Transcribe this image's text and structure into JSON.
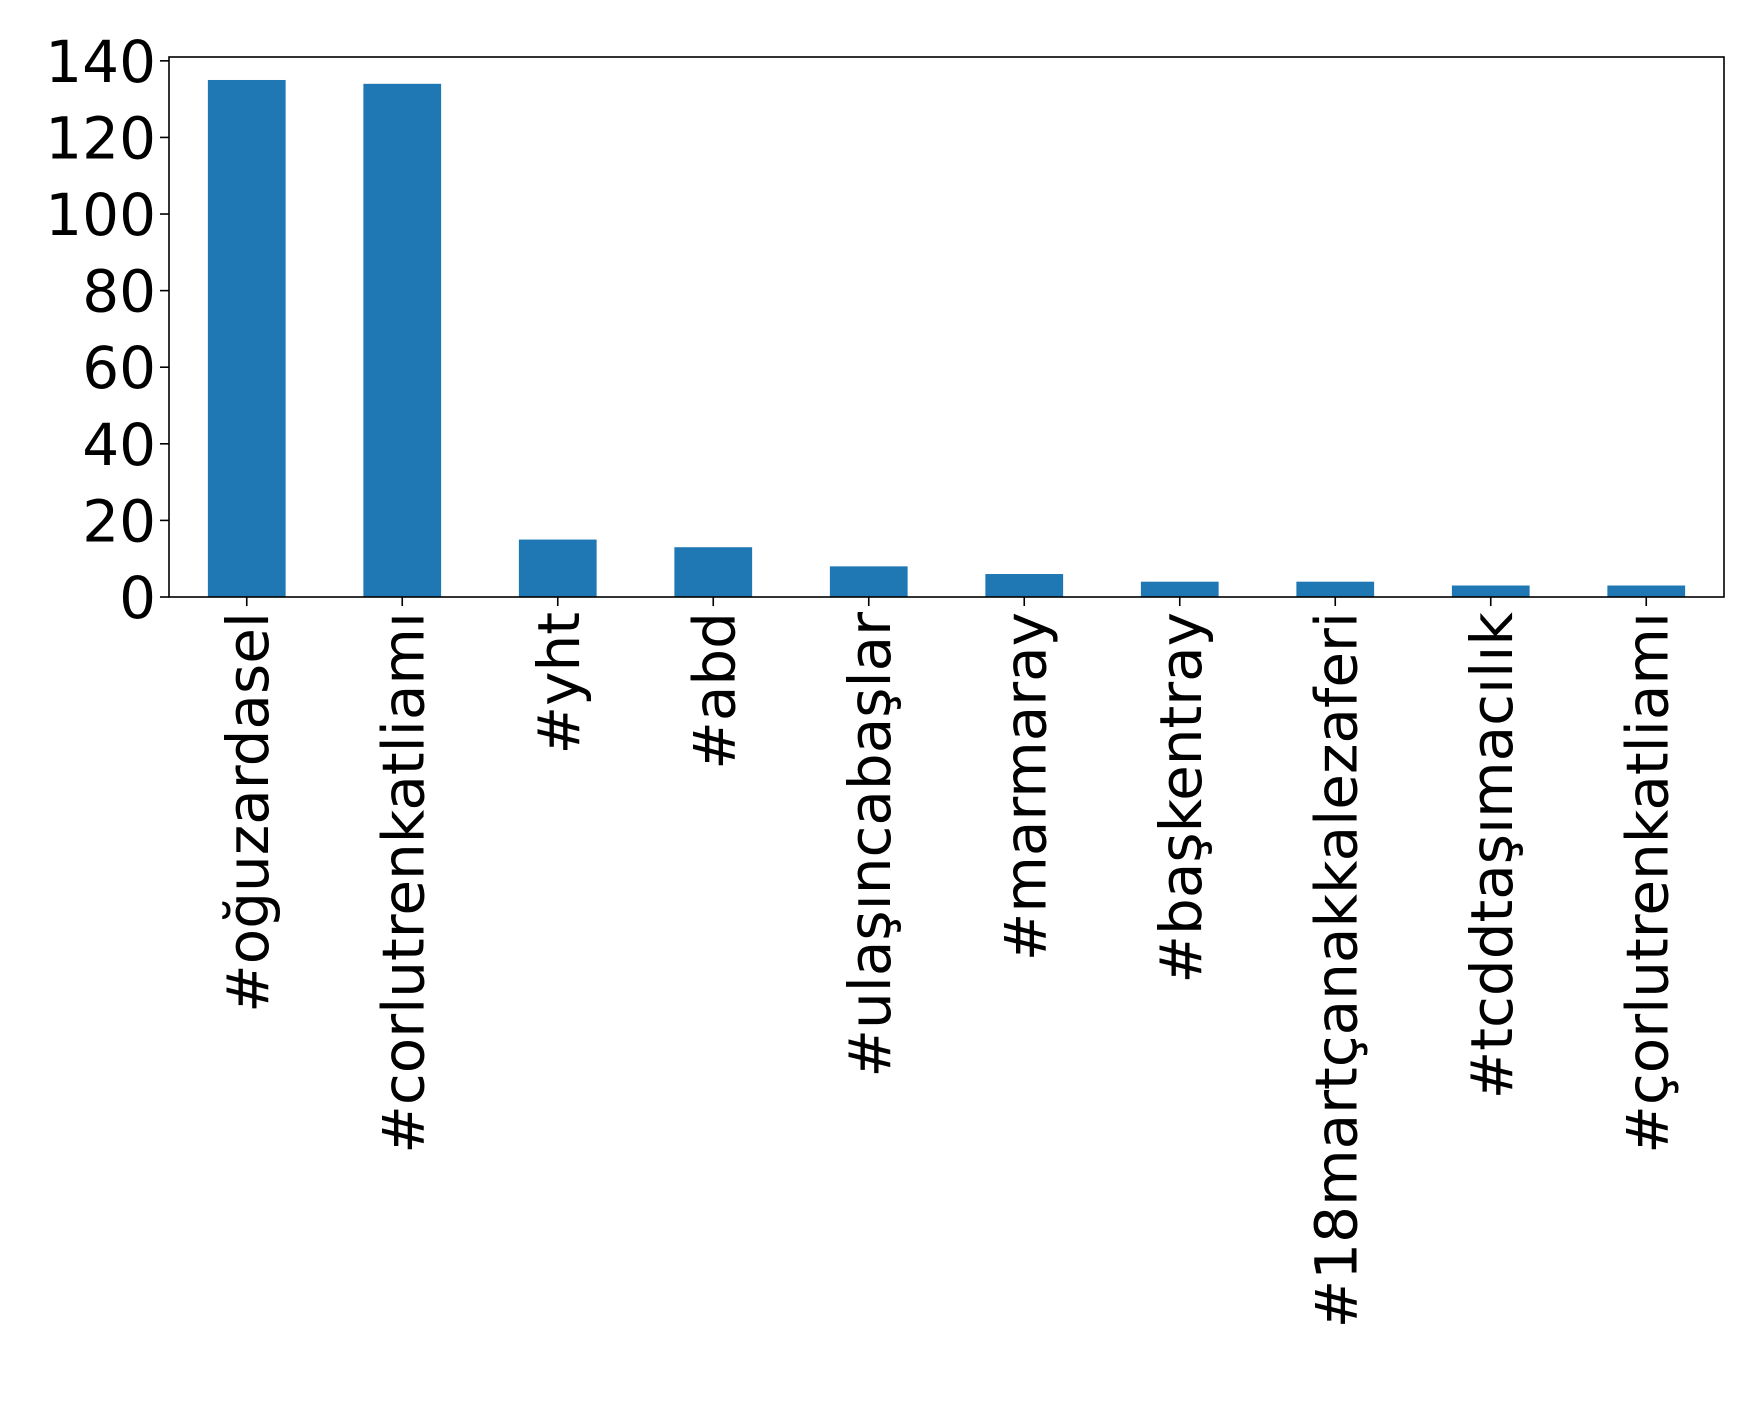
{
  "chart_data": {
    "type": "bar",
    "categories": [
      "#oğuzardasel",
      "#corlutrenkatliamı",
      "#yht",
      "#abd",
      "#ulaşıncabaşlar",
      "#marmaray",
      "#başkentray",
      "#18martçanakkalezaferi",
      "#tcddtaşımacılık",
      "#çorlutrenkatliamı"
    ],
    "values": [
      135,
      134,
      15,
      13,
      8,
      6,
      4,
      4,
      3,
      3
    ],
    "title": "",
    "xlabel": "",
    "ylabel": "",
    "ylim": [
      0,
      141
    ],
    "yticks": [
      0,
      20,
      40,
      60,
      80,
      100,
      120,
      140
    ],
    "grid": false,
    "legend": "none",
    "bar_color": "#1f77b4"
  }
}
